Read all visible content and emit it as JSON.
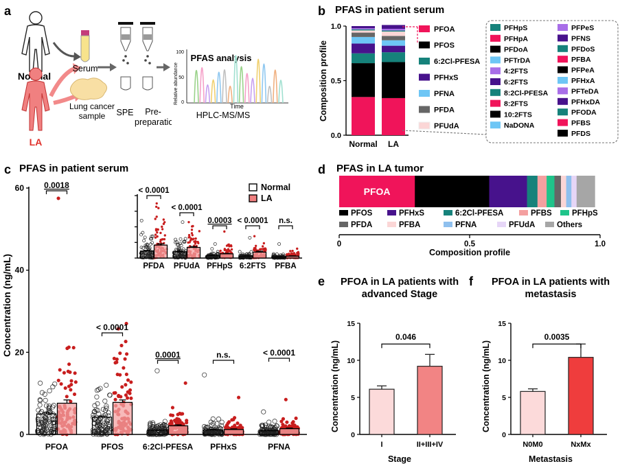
{
  "panels": {
    "a": {
      "letter": "a",
      "normal_label": "Normal",
      "la_label": "LA",
      "serum_label": "Serum",
      "lung_label": "Lung cancer sample",
      "spe_label": "SPE",
      "prep_label": "Pre-preparation",
      "analysis_title": "PFAS analysis",
      "ylabel": "Relative abundance",
      "yticks": [
        "100",
        "50",
        "0"
      ],
      "xlabel": "Time",
      "method": "HPLC-MS/MS"
    },
    "b": {
      "letter": "b",
      "title": "PFAS in patient serum",
      "ylabel": "Composition profile",
      "yticks": [
        "0.0",
        "0.5",
        "1.0"
      ],
      "categories": [
        "Normal",
        "LA"
      ],
      "legend_col1": [
        "PFOA",
        "PFOS",
        "6:2Cl-PFESA",
        "PFHxS",
        "PFNA",
        "PFDA",
        "PFUdA"
      ],
      "box_col1": [
        "PFHpS",
        "PFHpA",
        "PFDoA",
        "PFTrDA",
        "4:2FTS",
        "6:2FTS",
        "8:2Cl-PFESA",
        "8:2FTS",
        "10:2FTS",
        "NaDONA"
      ],
      "box_col2": [
        "PFPeS",
        "PFNS",
        "PFDoS",
        "PFBA",
        "PFPeA",
        "PFHxA",
        "PFTeDA",
        "PFHxDA",
        "PFODA",
        "PFBS",
        "PFDS"
      ],
      "colors": {
        "PFOA": "#f0145a",
        "PFOS": "#000000",
        "6:2Cl-PFESA": "#16827b",
        "PFHxS": "#47128c",
        "PFNA": "#6ec6f5",
        "PFDA": "#666666",
        "PFUdA": "#fbd6d6",
        "PFHpS": "#16827b",
        "PFHpA": "#f0145a",
        "PFDoA": "#000000",
        "PFTrDA": "#6ec6f5",
        "4:2FTS": "#a86ee8",
        "6:2FTS": "#47128c",
        "8:2Cl-PFESA": "#16827b",
        "8:2FTS": "#f0145a",
        "10:2FTS": "#000000",
        "NaDONA": "#6ec6f5",
        "PFPeS": "#a86ee8",
        "PFNS": "#47128c",
        "PFDoS": "#16827b",
        "PFBA": "#f0145a",
        "PFPeA": "#000000",
        "PFHxA": "#6ec6f5",
        "PFTeDA": "#a86ee8",
        "PFHxDA": "#47128c",
        "PFODA": "#16827b",
        "PFBS": "#f0145a",
        "PFDS": "#000000"
      }
    },
    "c": {
      "letter": "c",
      "title": "PFAS in patient serum",
      "ylabel": "Concentration (ng/mL)",
      "legend": [
        "Normal",
        "LA"
      ]
    },
    "d": {
      "letter": "d",
      "title": "PFAS in LA tumor",
      "bar_label": "PFOA",
      "xlabel": "Composition profile",
      "xticks": [
        "0",
        "0.5",
        "1.0"
      ],
      "legend": [
        {
          "name": "PFOS",
          "color": "#000000"
        },
        {
          "name": "PFHxS",
          "color": "#47128c"
        },
        {
          "name": "6:2Cl-PFESA",
          "color": "#16827b"
        },
        {
          "name": "PFBS",
          "color": "#f4a0a0"
        },
        {
          "name": "PFHpS",
          "color": "#1fc48a"
        },
        {
          "name": "PFDA",
          "color": "#666666"
        },
        {
          "name": "PFBA",
          "color": "#fbd6d6"
        },
        {
          "name": "PFNA",
          "color": "#8fc0ee"
        },
        {
          "name": "PFUdA",
          "color": "#e6d6f7"
        },
        {
          "name": "Others",
          "color": "#a6a6a6"
        }
      ]
    },
    "e": {
      "letter": "e",
      "title_line1": "PFOA in LA patients with",
      "title_line2": "advanced Stage",
      "ylabel": "Concentration (ng/mL)",
      "xlabel": "Stage",
      "pvalue": "0.046"
    },
    "f": {
      "letter": "f",
      "title_line1": "PFOA in LA patients with",
      "title_line2": "metastasis",
      "ylabel": "Concentration (ng/mL)",
      "xlabel": "Metastasis",
      "pvalue": "0.0035"
    }
  },
  "chart_data": [
    {
      "id": "b",
      "type": "bar",
      "stacked": true,
      "categories": [
        "Normal",
        "LA"
      ],
      "ylim": [
        0,
        1
      ],
      "series": [
        {
          "name": "PFOA",
          "color": "#f0145a",
          "values": [
            0.35,
            0.34
          ]
        },
        {
          "name": "PFOS",
          "color": "#000000",
          "values": [
            0.31,
            0.33
          ]
        },
        {
          "name": "6:2Cl-PFESA",
          "color": "#16827b",
          "values": [
            0.09,
            0.09
          ]
        },
        {
          "name": "PFHxS",
          "color": "#47128c",
          "values": [
            0.09,
            0.06
          ]
        },
        {
          "name": "PFNA",
          "color": "#6ec6f5",
          "values": [
            0.06,
            0.05
          ]
        },
        {
          "name": "PFDA",
          "color": "#666666",
          "values": [
            0.04,
            0.04
          ]
        },
        {
          "name": "PFUdA",
          "color": "#fbd6d6",
          "values": [
            0.02,
            0.04
          ]
        },
        {
          "name": "PFHpS",
          "color": "#16827b",
          "values": [
            0.01,
            0.01
          ]
        },
        {
          "name": "PFBA",
          "color": "#a86ee8",
          "values": [
            0.01,
            0.015
          ]
        },
        {
          "name": "PFHxA",
          "color": "#47128c",
          "values": [
            0.02,
            0.035
          ]
        }
      ]
    },
    {
      "id": "c-main",
      "type": "bar",
      "ylim": [
        0,
        60
      ],
      "yticks": [
        0,
        20,
        40,
        60
      ],
      "categories": [
        "PFOA",
        "PFOS",
        "6:2Cl-PFESA",
        "PFHxS",
        "PFNA"
      ],
      "series": [
        {
          "name": "Normal",
          "values": [
            5.0,
            4.2,
            1.0,
            1.1,
            0.9
          ],
          "errors": [
            0.4,
            0.3,
            0.1,
            0.15,
            0.08
          ]
        },
        {
          "name": "LA",
          "values": [
            7.6,
            7.8,
            2.1,
            1.2,
            1.4
          ],
          "errors": [
            0.8,
            0.6,
            0.25,
            0.15,
            0.15
          ]
        }
      ],
      "max_points": [
        [
          12.5,
          57.5
        ],
        [
          12.0,
          27.0
        ],
        [
          15.5,
          12.5
        ],
        [
          14.5,
          9.0
        ],
        [
          5.5,
          8.5
        ]
      ],
      "pvalues": [
        "0.0018",
        "< 0.0001",
        "0.0001",
        "n.s.",
        "< 0.0001"
      ]
    },
    {
      "id": "c-inset",
      "type": "bar",
      "ylim": [
        0,
        4
      ],
      "yticks": [
        0,
        1,
        2,
        3,
        4
      ],
      "categories": [
        "PFDA",
        "PFUdA",
        "PFHpS",
        "6:2FTS",
        "PFBA"
      ],
      "series": [
        {
          "name": "Normal",
          "values": [
            0.45,
            0.4,
            0.15,
            0.12,
            0.08
          ],
          "errors": [
            0.04,
            0.04,
            0.02,
            0.02,
            0.01
          ]
        },
        {
          "name": "LA",
          "values": [
            0.83,
            0.68,
            0.27,
            0.38,
            0.12
          ],
          "errors": [
            0.08,
            0.06,
            0.03,
            0.06,
            0.02
          ]
        }
      ],
      "max_points": [
        [
          2.4,
          3.5
        ],
        [
          2.3,
          2.3
        ],
        [
          0.9,
          1.7
        ],
        [
          1.3,
          1.4
        ],
        [
          0.9,
          0.6
        ]
      ],
      "pvalues": [
        "< 0.0001",
        "< 0.0001",
        "0.0003",
        "< 0.0001",
        "n.s."
      ]
    },
    {
      "id": "d",
      "type": "bar",
      "stacked": true,
      "orientation": "horizontal",
      "xlim": [
        0,
        1
      ],
      "segments": [
        {
          "name": "PFOA",
          "value": 0.29,
          "color": "#f0145a"
        },
        {
          "name": "PFOS",
          "value": 0.285,
          "color": "#000000"
        },
        {
          "name": "PFHxS",
          "value": 0.145,
          "color": "#47128c"
        },
        {
          "name": "6:2Cl-PFESA",
          "value": 0.04,
          "color": "#16827b"
        },
        {
          "name": "PFBS",
          "value": 0.035,
          "color": "#f4a0a0"
        },
        {
          "name": "PFHpS",
          "value": 0.03,
          "color": "#1fc48a"
        },
        {
          "name": "PFDA",
          "value": 0.025,
          "color": "#666666"
        },
        {
          "name": "PFBA",
          "value": 0.02,
          "color": "#fbd6d6"
        },
        {
          "name": "PFNA",
          "value": 0.02,
          "color": "#8fc0ee"
        },
        {
          "name": "PFUdA",
          "value": 0.02,
          "color": "#e6d6f7"
        },
        {
          "name": "Others",
          "value": 0.07,
          "color": "#a6a6a6"
        }
      ]
    },
    {
      "id": "e",
      "type": "bar",
      "categories": [
        "I",
        "II+III+IV"
      ],
      "values": [
        6.1,
        9.2
      ],
      "errors": [
        0.45,
        1.6
      ],
      "colors": [
        "#fcdada",
        "#f28484"
      ],
      "ylim": [
        0,
        15
      ],
      "yticks": [
        0,
        5,
        10,
        15
      ]
    },
    {
      "id": "f",
      "type": "bar",
      "categories": [
        "N0M0",
        "NxMx"
      ],
      "values": [
        5.8,
        10.4
      ],
      "errors": [
        0.35,
        1.8
      ],
      "colors": [
        "#fcdada",
        "#ef3d3d"
      ],
      "ylim": [
        0,
        15
      ],
      "yticks": [
        0,
        5,
        10,
        15
      ]
    }
  ]
}
